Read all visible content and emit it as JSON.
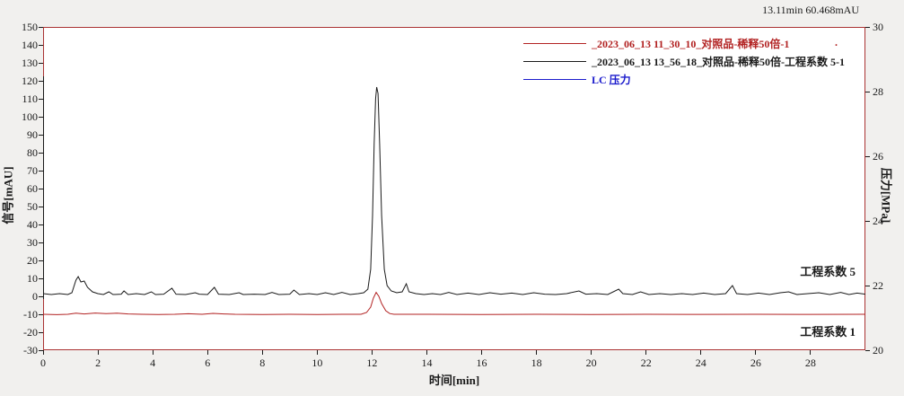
{
  "window": {
    "readout": "13.11min 60.468mAU"
  },
  "colors": {
    "background": "#f1f0ee",
    "plot_background": "#ffffff",
    "frame": "#aa3333",
    "red_series": "#b22222",
    "black_series": "#1a1a1a",
    "blue_series": "#1a1acc"
  },
  "chart_data": {
    "type": "line",
    "title": "",
    "xlabel": "时间[min]",
    "ylabel_left": "信号[mAU]",
    "ylabel_right": "压力[MPa]",
    "grid": false,
    "legend_position": "top-inside",
    "legend_dot": ".",
    "x_axis": {
      "min": 0,
      "max": 30,
      "ticks": [
        0,
        2,
        4,
        6,
        8,
        10,
        12,
        14,
        16,
        18,
        20,
        22,
        24,
        26,
        28
      ]
    },
    "y_left": {
      "min": -30,
      "max": 150,
      "ticks": [
        150,
        140,
        130,
        120,
        110,
        100,
        90,
        80,
        70,
        60,
        50,
        40,
        30,
        20,
        10,
        0,
        -10,
        -20,
        -30
      ]
    },
    "y_right": {
      "min": 20,
      "max": 30,
      "ticks": [
        30,
        28,
        26,
        24,
        22,
        20
      ]
    },
    "annotations": [
      {
        "id": "factor5",
        "text": "工程系数 5"
      },
      {
        "id": "factor1",
        "text": "工程系数 1"
      }
    ],
    "series": [
      {
        "name": "_2023_06_13 11_30_10_对照品-稀释50倍-1",
        "color": "#b22222",
        "axis": "left",
        "points": [
          [
            0,
            -10
          ],
          [
            0.5,
            -10.2
          ],
          [
            0.9,
            -10
          ],
          [
            1.2,
            -9.4
          ],
          [
            1.5,
            -9.8
          ],
          [
            1.9,
            -9.3
          ],
          [
            2.3,
            -9.6
          ],
          [
            2.7,
            -9.4
          ],
          [
            3.1,
            -9.8
          ],
          [
            3.6,
            -10
          ],
          [
            4.2,
            -10.1
          ],
          [
            4.8,
            -10
          ],
          [
            5.3,
            -9.7
          ],
          [
            5.8,
            -10
          ],
          [
            6.2,
            -9.5
          ],
          [
            6.6,
            -9.8
          ],
          [
            7.0,
            -10
          ],
          [
            8.0,
            -10.1
          ],
          [
            9.0,
            -10
          ],
          [
            10.0,
            -10.1
          ],
          [
            11.0,
            -10
          ],
          [
            11.6,
            -10
          ],
          [
            11.8,
            -9
          ],
          [
            11.95,
            -6
          ],
          [
            12.05,
            -1
          ],
          [
            12.15,
            2.2
          ],
          [
            12.25,
            0
          ],
          [
            12.35,
            -4
          ],
          [
            12.5,
            -8
          ],
          [
            12.65,
            -9.6
          ],
          [
            12.8,
            -10
          ],
          [
            14,
            -10
          ],
          [
            16,
            -10.1
          ],
          [
            18,
            -10
          ],
          [
            20,
            -10.1
          ],
          [
            22,
            -10
          ],
          [
            24,
            -10.05
          ],
          [
            26,
            -10
          ],
          [
            28,
            -10.05
          ],
          [
            30,
            -10
          ]
        ]
      },
      {
        "name": "_2023_06_13 13_56_18_对照品-稀释50倍-工程系数 5-1",
        "color": "#1a1a1a",
        "axis": "left",
        "points": [
          [
            0,
            1.5
          ],
          [
            0.3,
            1
          ],
          [
            0.6,
            1.5
          ],
          [
            0.9,
            1
          ],
          [
            1.05,
            2
          ],
          [
            1.2,
            9
          ],
          [
            1.28,
            11
          ],
          [
            1.38,
            8
          ],
          [
            1.5,
            8.5
          ],
          [
            1.62,
            5
          ],
          [
            1.8,
            2.5
          ],
          [
            2.0,
            1.5
          ],
          [
            2.2,
            1
          ],
          [
            2.4,
            2.5
          ],
          [
            2.55,
            1
          ],
          [
            2.85,
            1.2
          ],
          [
            2.95,
            3
          ],
          [
            3.1,
            1
          ],
          [
            3.4,
            1.5
          ],
          [
            3.7,
            1
          ],
          [
            3.95,
            2.5
          ],
          [
            4.1,
            1
          ],
          [
            4.4,
            1.2
          ],
          [
            4.7,
            4.5
          ],
          [
            4.85,
            1.2
          ],
          [
            5.2,
            1
          ],
          [
            5.55,
            2
          ],
          [
            5.7,
            1.2
          ],
          [
            6.0,
            1
          ],
          [
            6.25,
            5
          ],
          [
            6.4,
            1.2
          ],
          [
            6.8,
            1
          ],
          [
            7.15,
            2
          ],
          [
            7.3,
            1
          ],
          [
            7.7,
            1.2
          ],
          [
            8.1,
            1
          ],
          [
            8.35,
            2.2
          ],
          [
            8.6,
            1
          ],
          [
            9.0,
            1.2
          ],
          [
            9.15,
            3.5
          ],
          [
            9.35,
            1
          ],
          [
            9.7,
            1.5
          ],
          [
            10.0,
            1
          ],
          [
            10.3,
            2
          ],
          [
            10.6,
            1
          ],
          [
            10.9,
            2.2
          ],
          [
            11.2,
            1
          ],
          [
            11.5,
            1.5
          ],
          [
            11.7,
            2
          ],
          [
            11.85,
            4
          ],
          [
            11.95,
            15
          ],
          [
            12.02,
            45
          ],
          [
            12.08,
            85
          ],
          [
            12.13,
            110
          ],
          [
            12.17,
            116.5
          ],
          [
            12.22,
            113
          ],
          [
            12.28,
            85
          ],
          [
            12.35,
            45
          ],
          [
            12.45,
            15
          ],
          [
            12.55,
            6
          ],
          [
            12.7,
            3
          ],
          [
            12.9,
            2
          ],
          [
            13.1,
            2.5
          ],
          [
            13.25,
            7
          ],
          [
            13.35,
            2.5
          ],
          [
            13.6,
            1.5
          ],
          [
            13.9,
            1
          ],
          [
            14.2,
            1.5
          ],
          [
            14.5,
            1
          ],
          [
            14.8,
            2.2
          ],
          [
            15.1,
            1
          ],
          [
            15.5,
            1.8
          ],
          [
            15.9,
            1
          ],
          [
            16.3,
            2
          ],
          [
            16.7,
            1.2
          ],
          [
            17.1,
            1.8
          ],
          [
            17.5,
            1
          ],
          [
            17.9,
            2
          ],
          [
            18.3,
            1.2
          ],
          [
            18.7,
            1
          ],
          [
            19.1,
            1.5
          ],
          [
            19.55,
            3
          ],
          [
            19.8,
            1.2
          ],
          [
            20.2,
            1.5
          ],
          [
            20.6,
            1
          ],
          [
            21.0,
            4
          ],
          [
            21.15,
            1.5
          ],
          [
            21.5,
            1
          ],
          [
            21.8,
            2.5
          ],
          [
            22.1,
            1
          ],
          [
            22.5,
            1.5
          ],
          [
            22.9,
            1
          ],
          [
            23.3,
            1.5
          ],
          [
            23.7,
            1
          ],
          [
            24.1,
            1.8
          ],
          [
            24.5,
            1
          ],
          [
            24.9,
            1.5
          ],
          [
            25.15,
            6
          ],
          [
            25.3,
            1.5
          ],
          [
            25.7,
            1
          ],
          [
            26.1,
            1.8
          ],
          [
            26.5,
            1
          ],
          [
            26.9,
            2
          ],
          [
            27.2,
            2.5
          ],
          [
            27.5,
            1
          ],
          [
            27.9,
            1.5
          ],
          [
            28.3,
            2
          ],
          [
            28.7,
            1
          ],
          [
            29.1,
            2.2
          ],
          [
            29.4,
            1
          ],
          [
            29.7,
            1.8
          ],
          [
            30,
            1.2
          ]
        ]
      },
      {
        "name": "LC 压力",
        "color": "#1a1acc",
        "axis": "right",
        "points": []
      }
    ]
  }
}
